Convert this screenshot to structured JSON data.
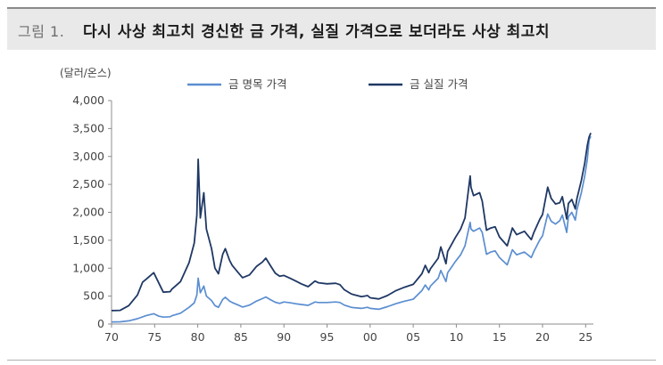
{
  "title": {
    "prefix": "그림 1.",
    "text": "다시 사상 최고치 경신한 금 가격, 실질 가격으로 보더라도 사상 최고치"
  },
  "chart_data": {
    "type": "line",
    "unit": "(달러/온스)",
    "ylim": [
      0,
      4000
    ],
    "y_ticks": [
      0,
      500,
      1000,
      1500,
      2000,
      2500,
      3000,
      3500,
      4000
    ],
    "y_tick_labels": [
      "0",
      "500",
      "1,000",
      "1,500",
      "2,000",
      "2,500",
      "3,000",
      "3,500",
      "4,000"
    ],
    "xlim": [
      1970,
      2025.9
    ],
    "x_ticks": [
      1970,
      1975,
      1980,
      1985,
      1990,
      1995,
      2000,
      2005,
      2010,
      2015,
      2020,
      2025
    ],
    "x_tick_labels": [
      "70",
      "75",
      "80",
      "85",
      "90",
      "95",
      "00",
      "05",
      "10",
      "15",
      "20",
      "25"
    ],
    "grid": false,
    "legend_position": "top",
    "series": [
      {
        "name": "금 명목 가격",
        "color": "#5b8ed0",
        "points": [
          [
            1970,
            36
          ],
          [
            1971,
            40
          ],
          [
            1972,
            58
          ],
          [
            1973,
            95
          ],
          [
            1974,
            150
          ],
          [
            1974.9,
            185
          ],
          [
            1975.5,
            140
          ],
          [
            1976,
            125
          ],
          [
            1976.8,
            130
          ],
          [
            1977,
            148
          ],
          [
            1978,
            195
          ],
          [
            1979,
            300
          ],
          [
            1979.6,
            380
          ],
          [
            1979.9,
            520
          ],
          [
            1980.05,
            820
          ],
          [
            1980.3,
            560
          ],
          [
            1980.7,
            680
          ],
          [
            1981,
            500
          ],
          [
            1981.6,
            420
          ],
          [
            1982,
            330
          ],
          [
            1982.4,
            300
          ],
          [
            1982.9,
            440
          ],
          [
            1983.2,
            480
          ],
          [
            1983.7,
            410
          ],
          [
            1984,
            385
          ],
          [
            1984.7,
            340
          ],
          [
            1985.2,
            305
          ],
          [
            1986,
            340
          ],
          [
            1986.8,
            410
          ],
          [
            1987.5,
            455
          ],
          [
            1987.9,
            485
          ],
          [
            1988.5,
            430
          ],
          [
            1989,
            390
          ],
          [
            1989.5,
            370
          ],
          [
            1990,
            395
          ],
          [
            1990.8,
            380
          ],
          [
            1991.5,
            360
          ],
          [
            1992,
            350
          ],
          [
            1992.8,
            335
          ],
          [
            1993.6,
            395
          ],
          [
            1994,
            385
          ],
          [
            1995,
            385
          ],
          [
            1996,
            395
          ],
          [
            1996.5,
            385
          ],
          [
            1997,
            340
          ],
          [
            1997.8,
            300
          ],
          [
            1998,
            295
          ],
          [
            1999,
            280
          ],
          [
            1999.7,
            300
          ],
          [
            2000,
            280
          ],
          [
            2001,
            265
          ],
          [
            2002,
            310
          ],
          [
            2003,
            365
          ],
          [
            2004,
            410
          ],
          [
            2005,
            445
          ],
          [
            2006,
            600
          ],
          [
            2006.4,
            700
          ],
          [
            2006.8,
            610
          ],
          [
            2007,
            680
          ],
          [
            2007.9,
            820
          ],
          [
            2008.2,
            960
          ],
          [
            2008.8,
            760
          ],
          [
            2009,
            920
          ],
          [
            2009.9,
            1120
          ],
          [
            2010.5,
            1240
          ],
          [
            2011,
            1400
          ],
          [
            2011.6,
            1820
          ],
          [
            2011.7,
            1700
          ],
          [
            2012,
            1660
          ],
          [
            2012.7,
            1720
          ],
          [
            2013,
            1640
          ],
          [
            2013.5,
            1250
          ],
          [
            2014,
            1290
          ],
          [
            2014.5,
            1310
          ],
          [
            2015,
            1190
          ],
          [
            2015.9,
            1060
          ],
          [
            2016.5,
            1330
          ],
          [
            2017,
            1240
          ],
          [
            2017.9,
            1290
          ],
          [
            2018.7,
            1190
          ],
          [
            2019,
            1300
          ],
          [
            2019.7,
            1510
          ],
          [
            2020,
            1580
          ],
          [
            2020.6,
            1970
          ],
          [
            2021,
            1840
          ],
          [
            2021.5,
            1790
          ],
          [
            2022,
            1850
          ],
          [
            2022.3,
            1950
          ],
          [
            2022.8,
            1640
          ],
          [
            2023,
            1920
          ],
          [
            2023.4,
            2000
          ],
          [
            2023.8,
            1860
          ],
          [
            2024,
            2050
          ],
          [
            2024.5,
            2350
          ],
          [
            2024.9,
            2650
          ],
          [
            2025.2,
            2950
          ],
          [
            2025.4,
            3300
          ],
          [
            2025.6,
            3360
          ]
        ]
      },
      {
        "name": "금 실질 가격",
        "color": "#1f3864",
        "points": [
          [
            1970,
            240
          ],
          [
            1971,
            245
          ],
          [
            1972,
            330
          ],
          [
            1973,
            520
          ],
          [
            1973.6,
            750
          ],
          [
            1974,
            800
          ],
          [
            1974.9,
            920
          ],
          [
            1975.5,
            730
          ],
          [
            1976,
            570
          ],
          [
            1976.8,
            580
          ],
          [
            1977,
            625
          ],
          [
            1978,
            760
          ],
          [
            1979,
            1100
          ],
          [
            1979.6,
            1450
          ],
          [
            1979.9,
            1950
          ],
          [
            1980.05,
            2950
          ],
          [
            1980.3,
            1900
          ],
          [
            1980.7,
            2350
          ],
          [
            1981,
            1700
          ],
          [
            1981.6,
            1350
          ],
          [
            1982,
            1000
          ],
          [
            1982.4,
            900
          ],
          [
            1982.9,
            1250
          ],
          [
            1983.2,
            1350
          ],
          [
            1983.7,
            1140
          ],
          [
            1984,
            1050
          ],
          [
            1984.7,
            920
          ],
          [
            1985.2,
            830
          ],
          [
            1986,
            880
          ],
          [
            1986.8,
            1030
          ],
          [
            1987.5,
            1110
          ],
          [
            1987.9,
            1180
          ],
          [
            1988.5,
            1030
          ],
          [
            1989,
            910
          ],
          [
            1989.5,
            855
          ],
          [
            1990,
            870
          ],
          [
            1990.8,
            815
          ],
          [
            1991.5,
            760
          ],
          [
            1992,
            720
          ],
          [
            1992.8,
            670
          ],
          [
            1993.6,
            770
          ],
          [
            1994,
            740
          ],
          [
            1995,
            720
          ],
          [
            1996,
            730
          ],
          [
            1996.5,
            705
          ],
          [
            1997,
            615
          ],
          [
            1997.8,
            540
          ],
          [
            1998,
            530
          ],
          [
            1999,
            490
          ],
          [
            1999.7,
            510
          ],
          [
            2000,
            470
          ],
          [
            2001,
            450
          ],
          [
            2002,
            510
          ],
          [
            2003,
            600
          ],
          [
            2004,
            660
          ],
          [
            2005,
            710
          ],
          [
            2006,
            900
          ],
          [
            2006.4,
            1050
          ],
          [
            2006.8,
            920
          ],
          [
            2007,
            990
          ],
          [
            2007.9,
            1180
          ],
          [
            2008.2,
            1380
          ],
          [
            2008.8,
            1080
          ],
          [
            2009,
            1300
          ],
          [
            2009.9,
            1550
          ],
          [
            2010.5,
            1700
          ],
          [
            2011,
            1900
          ],
          [
            2011.6,
            2650
          ],
          [
            2011.7,
            2450
          ],
          [
            2012,
            2300
          ],
          [
            2012.7,
            2350
          ],
          [
            2013,
            2200
          ],
          [
            2013.5,
            1680
          ],
          [
            2014,
            1720
          ],
          [
            2014.5,
            1740
          ],
          [
            2015,
            1560
          ],
          [
            2015.9,
            1400
          ],
          [
            2016.5,
            1720
          ],
          [
            2017,
            1600
          ],
          [
            2017.9,
            1660
          ],
          [
            2018.7,
            1510
          ],
          [
            2019,
            1640
          ],
          [
            2019.7,
            1880
          ],
          [
            2020,
            1960
          ],
          [
            2020.6,
            2450
          ],
          [
            2021,
            2250
          ],
          [
            2021.5,
            2150
          ],
          [
            2022,
            2170
          ],
          [
            2022.3,
            2280
          ],
          [
            2022.8,
            1880
          ],
          [
            2023,
            2160
          ],
          [
            2023.4,
            2230
          ],
          [
            2023.8,
            2060
          ],
          [
            2024,
            2250
          ],
          [
            2024.5,
            2570
          ],
          [
            2024.9,
            2880
          ],
          [
            2025.2,
            3200
          ],
          [
            2025.4,
            3350
          ],
          [
            2025.6,
            3420
          ]
        ]
      }
    ]
  }
}
